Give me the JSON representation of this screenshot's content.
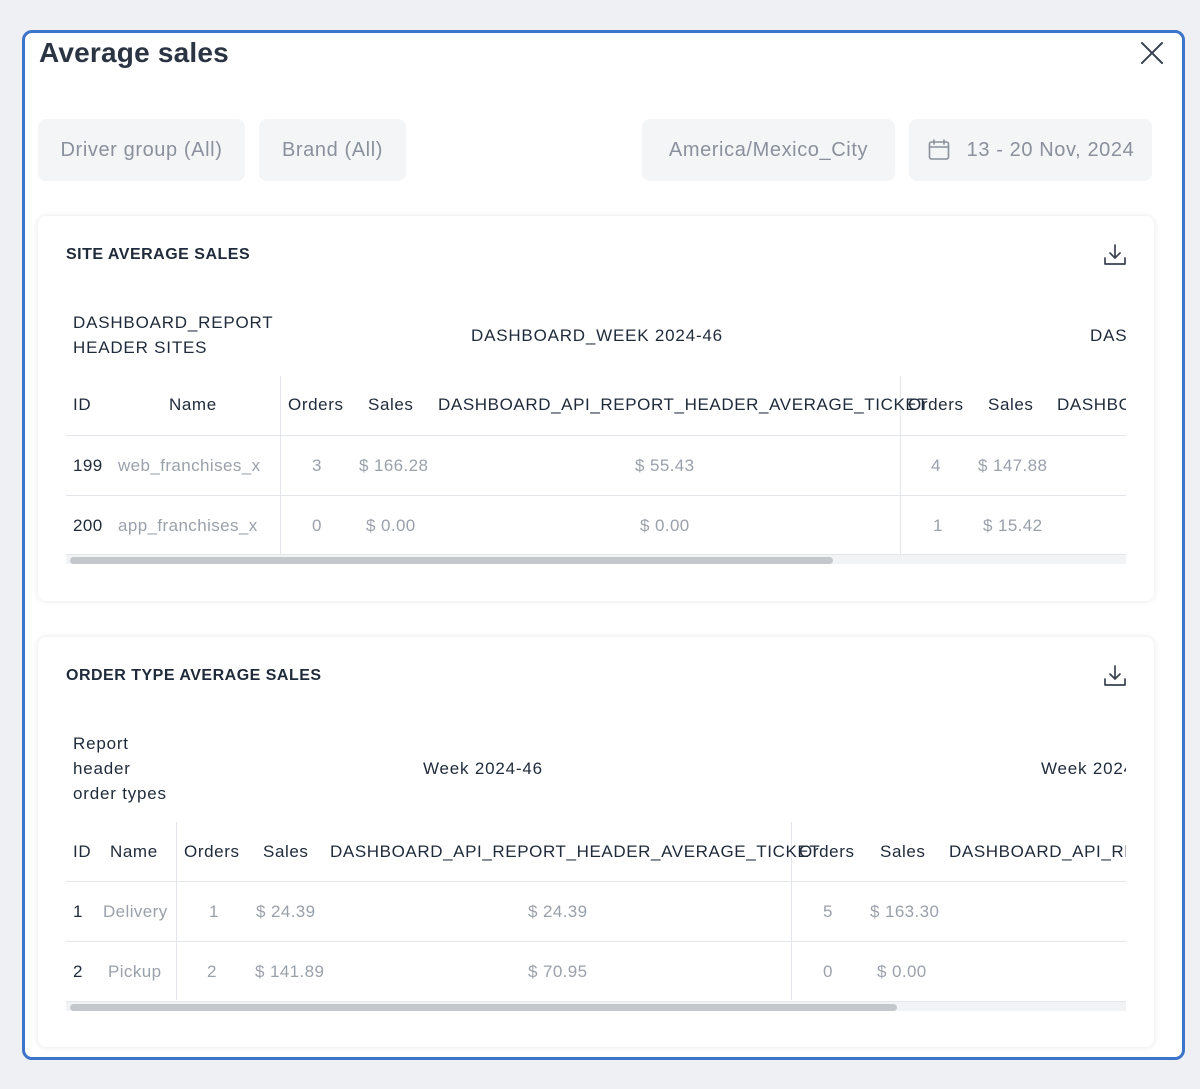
{
  "modal": {
    "title": "Average sales"
  },
  "filters": {
    "driver_group": "Driver group (All)",
    "brand": "Brand (All)",
    "timezone": "America/Mexico_City",
    "date_range": "13 - 20 Nov, 2024"
  },
  "site_table": {
    "title": "SITE AVERAGE SALES",
    "group_header_1_line1": "DASHBOARD_REPORT",
    "group_header_1_line2": "HEADER SITES",
    "group_header_2": "DASHBOARD_WEEK 2024-46",
    "group_header_3": "DAS",
    "columns": [
      "ID",
      "Name",
      "Orders",
      "Sales",
      "DASHBOARD_API_REPORT_HEADER_AVERAGE_TICKET",
      "Orders",
      "Sales",
      "DASHBO"
    ],
    "rows": [
      [
        "199",
        "web_franchises_x",
        "3",
        "$ 166.28",
        "$ 55.43",
        "4",
        "$ 147.88"
      ],
      [
        "200",
        "app_franchises_x",
        "0",
        "$ 0.00",
        "$ 0.00",
        "1",
        "$ 15.42"
      ]
    ],
    "scroll_fraction": 0.72
  },
  "order_table": {
    "title": "ORDER TYPE AVERAGE SALES",
    "group_header_1_line1": "Report",
    "group_header_1_line2": "header",
    "group_header_1_line3": "order types",
    "group_header_2": "Week 2024-46",
    "group_header_3": "Week 2024",
    "columns": [
      "ID",
      "Name",
      "Orders",
      "Sales",
      "DASHBOARD_API_REPORT_HEADER_AVERAGE_TICKET",
      "Orders",
      "Sales",
      "DASHBOARD_API_RE"
    ],
    "rows": [
      [
        "1",
        "Delivery",
        "1",
        "$ 24.39",
        "$ 24.39",
        "5",
        "$ 163.30"
      ],
      [
        "2",
        "Pickup",
        "2",
        "$ 141.89",
        "$ 70.95",
        "0",
        "$ 0.00"
      ]
    ],
    "scroll_fraction": 0.78
  },
  "icons": {
    "close": "close-icon",
    "calendar": "calendar-icon",
    "download": "download-icon"
  },
  "colors": {
    "accent_border": "#3b74c9"
  }
}
